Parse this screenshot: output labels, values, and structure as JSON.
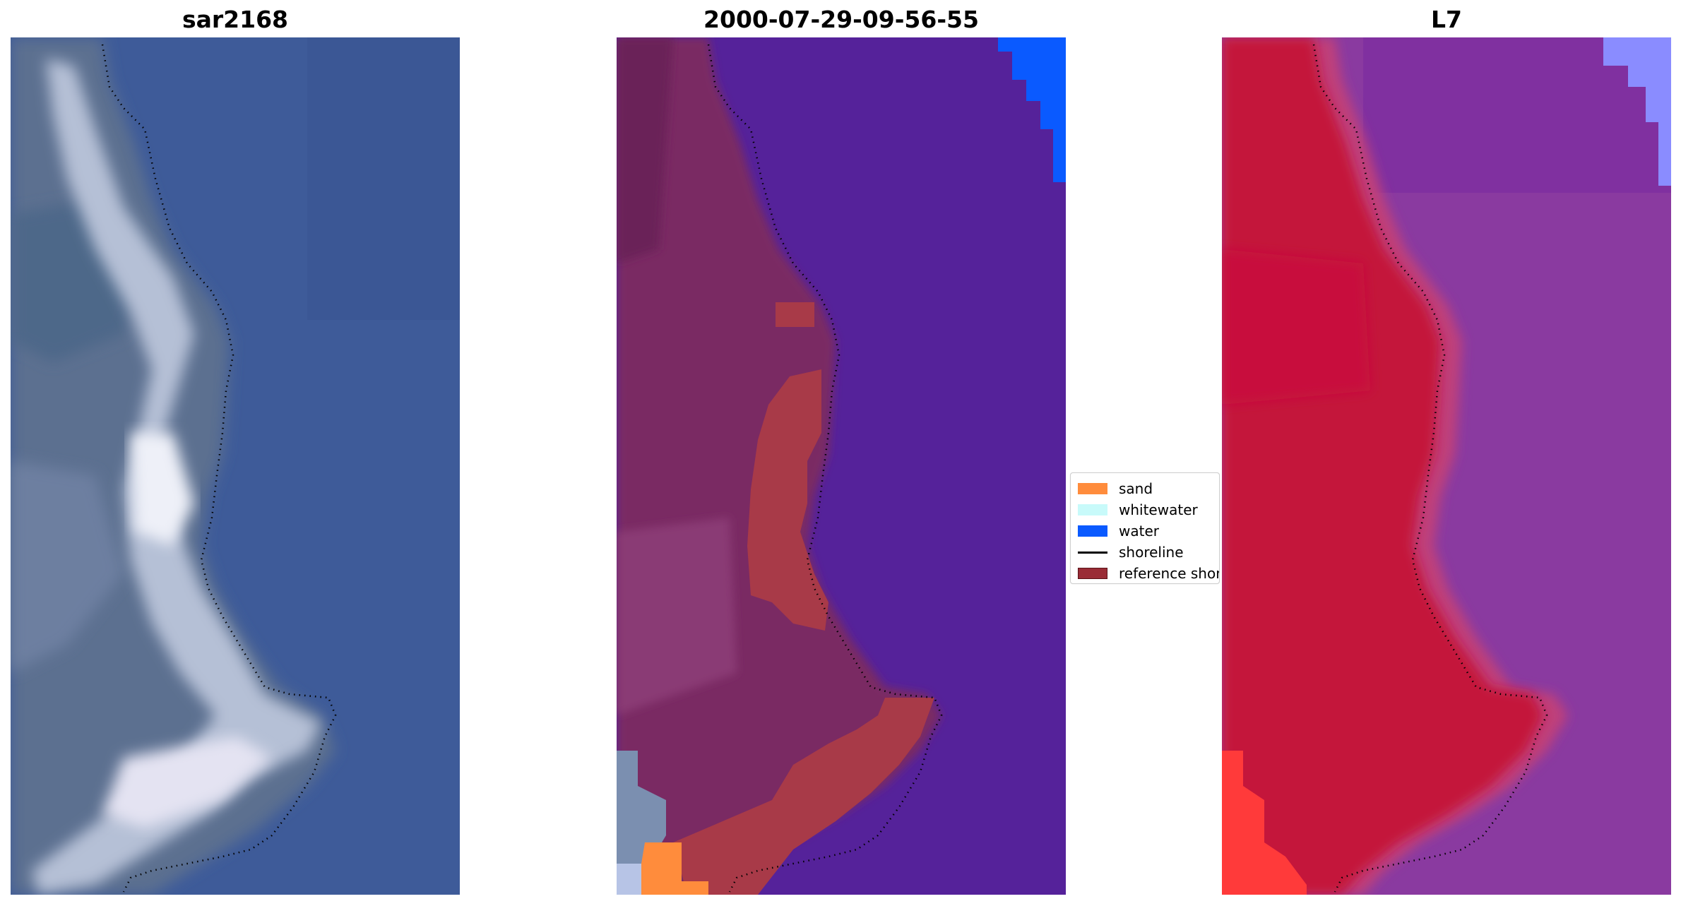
{
  "panels": [
    {
      "title": "sar2168"
    },
    {
      "title": "2000-07-29-09-56-55"
    },
    {
      "title": "L7"
    }
  ],
  "legend": {
    "items": [
      {
        "label": "sand",
        "color": "#ff8c3c",
        "kind": "patch"
      },
      {
        "label": "whitewater",
        "color": "#c8fafa",
        "kind": "patch"
      },
      {
        "label": "water",
        "color": "#0a5aff",
        "kind": "patch"
      },
      {
        "label": "shoreline",
        "color": "#000000",
        "kind": "line"
      },
      {
        "label": "reference shoreline",
        "color": "#9a2c36",
        "kind": "patch"
      }
    ]
  },
  "colors": {
    "rgb_water": "#3f5c9a",
    "rgb_land": "#5f7394",
    "class_water": "#5526a0",
    "class_land": "#7a2a62",
    "l7_land": "#c4123a",
    "l7_water": "#8a3aa0"
  }
}
